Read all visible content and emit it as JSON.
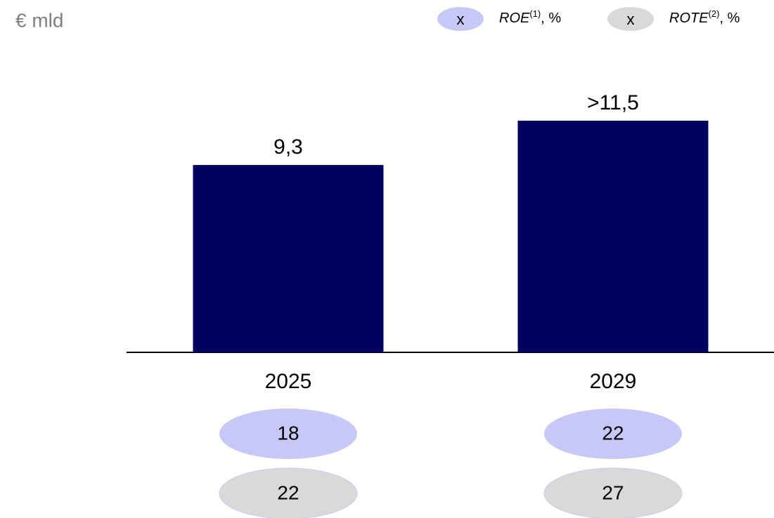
{
  "chart_data": {
    "type": "bar",
    "unit_label": "€ mld",
    "categories": [
      "2025",
      "2029"
    ],
    "values": [
      9.3,
      11.5
    ],
    "value_labels": [
      "9,3",
      ">11,5"
    ],
    "color": "#000060",
    "ratios": [
      {
        "marker": "x",
        "name": "ROE",
        "superscript": "(1)",
        "suffix": ", %",
        "color": "#c8c8f8",
        "values": [
          18,
          22
        ]
      },
      {
        "marker": "x",
        "name": "ROTE",
        "superscript": "(2)",
        "suffix": ", %",
        "color": "#d9d9d9",
        "values": [
          22,
          27
        ]
      }
    ]
  }
}
